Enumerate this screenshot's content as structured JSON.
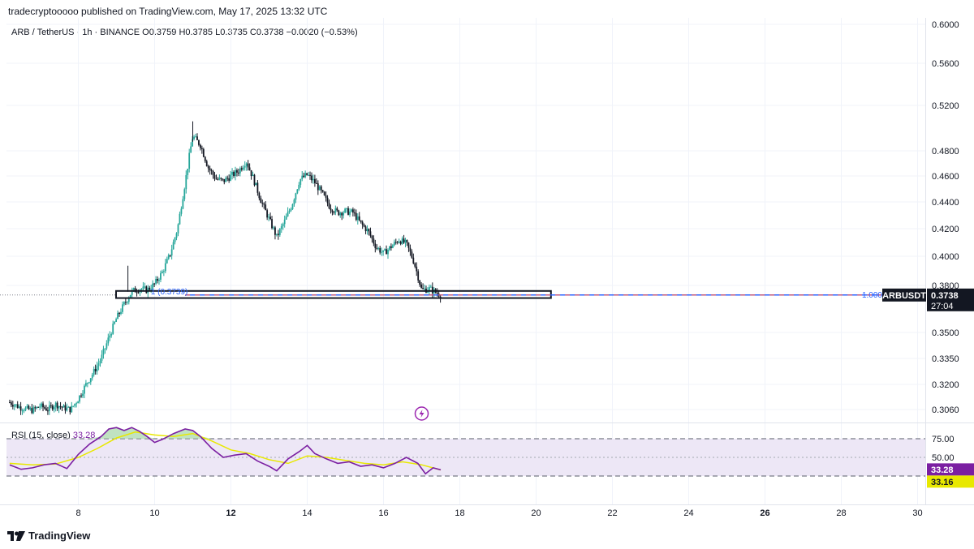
{
  "header": {
    "publisher": "tradecryptooooo published on TradingView.com, May 17, 2025 13:32 UTC"
  },
  "legend": {
    "text": "ARB / TetherUS · 1h · BINANCE  O0.3759  H0.3785  L0.3735  C0.3738  −0.0020 (−0.53%)"
  },
  "rsi": {
    "label": "RSI (15, close)",
    "value_text": "33.28",
    "tag_rsi": "33.28",
    "tag_ma": "33.16",
    "levels": [
      75,
      50,
      25
    ],
    "tick_labels": [
      "75.00",
      "50.00"
    ]
  },
  "price_axis": {
    "ticks": [
      "0.6000",
      "0.5600",
      "0.5200",
      "0.4800",
      "0.4600",
      "0.4400",
      "0.4200",
      "0.4000",
      "0.3800",
      "0.3500",
      "0.3350",
      "0.3200",
      "0.3060"
    ]
  },
  "time_axis": {
    "labels": [
      "8",
      "10",
      "12",
      "14",
      "16",
      "18",
      "20",
      "22",
      "24",
      "26",
      "28",
      "30"
    ],
    "bold": [
      "12",
      "26"
    ]
  },
  "symbol_tag": {
    "name": "ARBUSDT",
    "price": "0.3738",
    "countdown": "27:04"
  },
  "support": {
    "label": "1 (0.3739)",
    "right_label": "1.000"
  },
  "footer": {
    "brand": "TradingView"
  },
  "colors": {
    "up": "#26a69a",
    "down": "#131722",
    "rsi_line": "#7b1fa2",
    "rsi_ma": "#e8e800",
    "rsi_band": "#ede7f6",
    "support_line": "#2962ff",
    "support_dash": "#ef5350"
  },
  "chart_data": {
    "type": "candlestick",
    "title": "ARB / TetherUS · 1h · BINANCE",
    "xlabel": "",
    "ylabel": "",
    "x_range_days": [
      6.2,
      30.2
    ],
    "ylim": [
      0.296,
      0.604
    ],
    "series": [
      {
        "name": "price_path",
        "points": [
          [
            6.2,
            0.31
          ],
          [
            6.5,
            0.307
          ],
          [
            6.8,
            0.3055
          ],
          [
            7.0,
            0.308
          ],
          [
            7.2,
            0.306
          ],
          [
            7.4,
            0.309
          ],
          [
            7.6,
            0.307
          ],
          [
            7.8,
            0.306
          ],
          [
            8.0,
            0.312
          ],
          [
            8.2,
            0.32
          ],
          [
            8.4,
            0.327
          ],
          [
            8.6,
            0.335
          ],
          [
            8.8,
            0.347
          ],
          [
            9.0,
            0.359
          ],
          [
            9.2,
            0.368
          ],
          [
            9.4,
            0.376
          ],
          [
            9.6,
            0.378
          ],
          [
            9.8,
            0.377
          ],
          [
            10.0,
            0.381
          ],
          [
            10.2,
            0.389
          ],
          [
            10.4,
            0.401
          ],
          [
            10.6,
            0.42
          ],
          [
            10.8,
            0.455
          ],
          [
            11.0,
            0.493
          ],
          [
            11.2,
            0.485
          ],
          [
            11.4,
            0.467
          ],
          [
            11.6,
            0.458
          ],
          [
            11.8,
            0.456
          ],
          [
            12.0,
            0.46
          ],
          [
            12.2,
            0.464
          ],
          [
            12.4,
            0.472
          ],
          [
            12.6,
            0.457
          ],
          [
            12.8,
            0.44
          ],
          [
            13.0,
            0.427
          ],
          [
            13.2,
            0.414
          ],
          [
            13.4,
            0.425
          ],
          [
            13.6,
            0.438
          ],
          [
            13.8,
            0.457
          ],
          [
            14.0,
            0.461
          ],
          [
            14.2,
            0.455
          ],
          [
            14.4,
            0.446
          ],
          [
            14.6,
            0.436
          ],
          [
            14.8,
            0.432
          ],
          [
            15.0,
            0.433
          ],
          [
            15.2,
            0.432
          ],
          [
            15.4,
            0.424
          ],
          [
            15.6,
            0.418
          ],
          [
            15.8,
            0.407
          ],
          [
            16.0,
            0.402
          ],
          [
            16.2,
            0.407
          ],
          [
            16.4,
            0.412
          ],
          [
            16.6,
            0.409
          ],
          [
            16.8,
            0.396
          ],
          [
            17.0,
            0.377
          ],
          [
            17.2,
            0.378
          ],
          [
            17.5,
            0.3738
          ]
        ]
      },
      {
        "name": "RSI (15, close)",
        "points": [
          [
            6.2,
            40
          ],
          [
            6.5,
            34
          ],
          [
            6.8,
            36
          ],
          [
            7.1,
            40
          ],
          [
            7.4,
            42
          ],
          [
            7.7,
            35
          ],
          [
            8.0,
            54
          ],
          [
            8.3,
            68
          ],
          [
            8.6,
            78
          ],
          [
            8.8,
            88
          ],
          [
            9.0,
            90
          ],
          [
            9.2,
            86
          ],
          [
            9.4,
            90
          ],
          [
            9.6,
            85
          ],
          [
            9.8,
            78
          ],
          [
            10.0,
            70
          ],
          [
            10.2,
            74
          ],
          [
            10.5,
            82
          ],
          [
            10.8,
            88
          ],
          [
            11.0,
            86
          ],
          [
            11.2,
            78
          ],
          [
            11.5,
            62
          ],
          [
            11.8,
            50
          ],
          [
            12.1,
            53
          ],
          [
            12.4,
            55
          ],
          [
            12.7,
            45
          ],
          [
            13.0,
            38
          ],
          [
            13.2,
            32
          ],
          [
            13.5,
            48
          ],
          [
            13.8,
            58
          ],
          [
            14.0,
            66
          ],
          [
            14.2,
            55
          ],
          [
            14.5,
            48
          ],
          [
            14.8,
            42
          ],
          [
            15.1,
            44
          ],
          [
            15.4,
            38
          ],
          [
            15.7,
            40
          ],
          [
            16.0,
            36
          ],
          [
            16.3,
            42
          ],
          [
            16.6,
            50
          ],
          [
            16.9,
            42
          ],
          [
            17.1,
            28
          ],
          [
            17.3,
            36
          ],
          [
            17.5,
            33.28
          ]
        ]
      },
      {
        "name": "RSI MA",
        "points": [
          [
            6.2,
            42
          ],
          [
            6.8,
            40
          ],
          [
            7.4,
            41
          ],
          [
            8.0,
            50
          ],
          [
            8.5,
            62
          ],
          [
            9.0,
            76
          ],
          [
            9.5,
            84
          ],
          [
            10.0,
            80
          ],
          [
            10.5,
            78
          ],
          [
            11.0,
            82
          ],
          [
            11.5,
            72
          ],
          [
            12.0,
            60
          ],
          [
            12.5,
            55
          ],
          [
            13.0,
            47
          ],
          [
            13.5,
            42
          ],
          [
            14.0,
            52
          ],
          [
            14.5,
            50
          ],
          [
            15.0,
            46
          ],
          [
            15.5,
            42
          ],
          [
            16.0,
            40
          ],
          [
            16.5,
            44
          ],
          [
            17.0,
            40
          ],
          [
            17.5,
            33.16
          ]
        ]
      }
    ],
    "support_level": 0.3739,
    "support_zone": [
      9.0,
      20.4,
      0.373,
      0.3765
    ],
    "rsi_range": [
      0,
      100
    ],
    "grid": true
  }
}
